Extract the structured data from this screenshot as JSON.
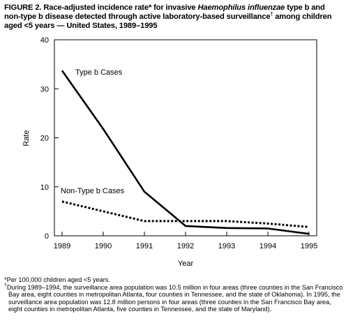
{
  "figure": {
    "label": "FIGURE 2.",
    "title_part1": "Race-adjusted incidence rate* for invasive",
    "title_italic": "Haemophilus influenzae",
    "title_part2": "type b and non-type b disease detected through active laboratory-based surveillance",
    "title_dagger": "†",
    "title_part3": "among children aged <5 years — United States, 1989–1995"
  },
  "footnotes": [
    {
      "marker": "*",
      "text": "Per 100,000 children aged <5 years."
    },
    {
      "marker": "†",
      "text": "During 1989–1994, the surveillance area population was 10.5 million in four areas (three counties in the San Francisco Bay area, eight counties in metropolitan Atlanta, four counties in Tennessee, and the state of Oklahoma). In 1995, the surveillance area population was 12.8 million persons in four areas (three counties in the San Francisco Bay area, eight counties in metropolitan Atlanta, five counties in Tennessee, and the state of Maryland)."
    }
  ],
  "chart_data": {
    "type": "line",
    "xlabel": "Year",
    "ylabel": "Rate",
    "x": [
      "1989",
      "1990",
      "1991",
      "1992",
      "1993",
      "1994",
      "1995"
    ],
    "ylim": [
      0,
      40
    ],
    "yticks": [
      "0",
      "10",
      "20",
      "30",
      "40"
    ],
    "grid": false,
    "series": [
      {
        "name": "Type b Cases",
        "style": "solid",
        "values": [
          33.7,
          21.8,
          9.0,
          2.0,
          1.6,
          1.5,
          0.4
        ]
      },
      {
        "name": "Non-Type b Cases",
        "style": "dotted",
        "values": [
          7.0,
          5.0,
          3.0,
          3.0,
          3.0,
          2.5,
          1.8
        ]
      }
    ]
  }
}
